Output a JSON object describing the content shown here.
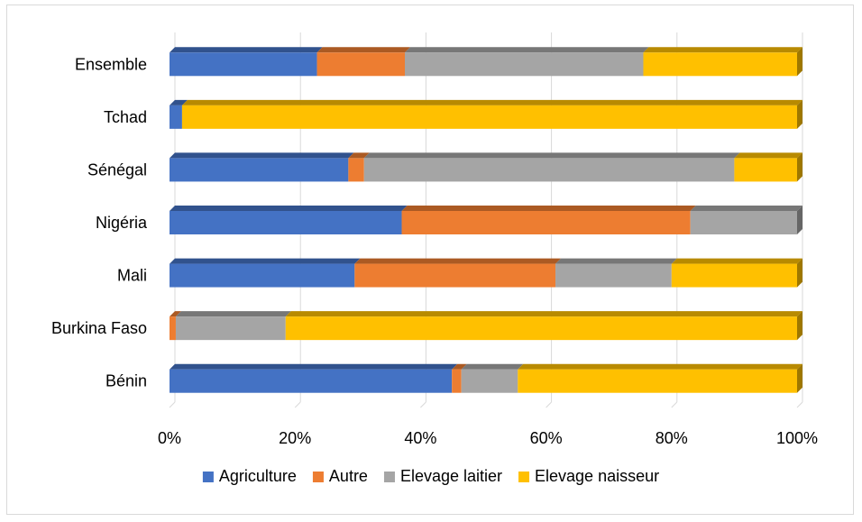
{
  "chart_data": {
    "type": "bar",
    "orientation": "horizontal",
    "stacked": "percent",
    "categories": [
      "Ensemble",
      "Tchad",
      "Sénégal",
      "Nigéria",
      "Mali",
      "Burkina Faso",
      "Bénin"
    ],
    "series": [
      {
        "name": "Agriculture",
        "color": "#4472C4",
        "values": [
          23.5,
          2,
          28.5,
          37,
          29.5,
          0,
          45
        ]
      },
      {
        "name": "Autre",
        "color": "#ED7D31",
        "values": [
          14,
          0,
          2.5,
          46,
          32,
          1,
          1.5
        ]
      },
      {
        "name": "Elevage laitier",
        "color": "#A5A5A5",
        "values": [
          38,
          0,
          59,
          17,
          18.5,
          17.5,
          9
        ]
      },
      {
        "name": "Elevage naisseur",
        "color": "#FFC000",
        "values": [
          24.5,
          98,
          10,
          0,
          20,
          81.5,
          44.5
        ]
      }
    ],
    "x_ticks": [
      "0%",
      "20%",
      "40%",
      "60%",
      "80%",
      "100%"
    ],
    "xlim": [
      0,
      100
    ],
    "grid": true,
    "legend_position": "bottom",
    "title": "",
    "xlabel": "",
    "ylabel": ""
  }
}
